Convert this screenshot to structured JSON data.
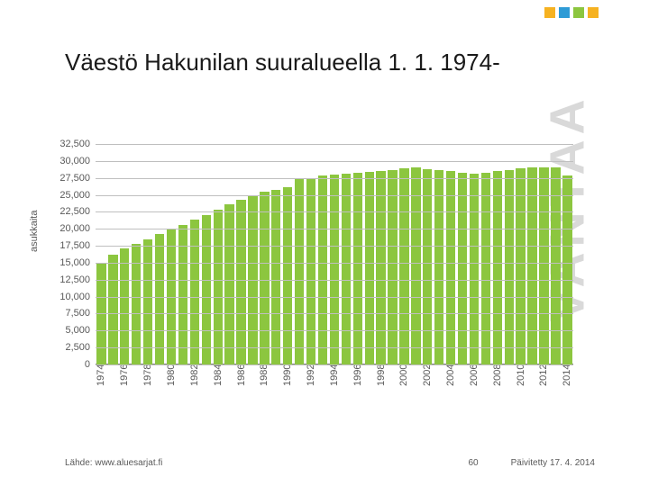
{
  "decor": {
    "dot_colors": [
      "#f6b221",
      "#2e9bd6",
      "#8cc63f",
      "#f6b221"
    ],
    "vantaa_text": "VANTAA",
    "vantaa_color": "#d9d9d9"
  },
  "title": "Väestö Hakunilan suuralueella 1. 1. 1974-",
  "chart": {
    "type": "bar",
    "ylabel": "asukkaita",
    "ylim": [
      0,
      32500
    ],
    "ytick_step": 2500,
    "grid_color": "#bfbfbf",
    "bar_color": "#8cc63f",
    "background_color": "#ffffff",
    "label_fontsize": 11,
    "title_fontsize": 26,
    "years": [
      1974,
      1975,
      1976,
      1977,
      1978,
      1979,
      1980,
      1981,
      1982,
      1983,
      1984,
      1985,
      1986,
      1987,
      1988,
      1989,
      1990,
      1991,
      1992,
      1993,
      1994,
      1995,
      1996,
      1997,
      1998,
      1999,
      2000,
      2001,
      2002,
      2003,
      2004,
      2005,
      2006,
      2007,
      2008,
      2009,
      2010,
      2011,
      2012,
      2013,
      2014
    ],
    "values": [
      15000,
      16200,
      17100,
      17800,
      18400,
      19200,
      19900,
      20600,
      21300,
      22000,
      22800,
      23600,
      24300,
      25000,
      25500,
      25800,
      26200,
      27300,
      27500,
      27800,
      28000,
      28100,
      28200,
      28400,
      28500,
      28700,
      28900,
      29000,
      28800,
      28700,
      28500,
      28300,
      28100,
      28300,
      28500,
      28700,
      28900,
      29000,
      29100,
      29000,
      27800
    ],
    "x_label_years": [
      1974,
      1976,
      1978,
      1980,
      1982,
      1984,
      1986,
      1988,
      1990,
      1992,
      1994,
      1996,
      1998,
      2000,
      2002,
      2004,
      2006,
      2008,
      2010,
      2012,
      2014
    ]
  },
  "footer": {
    "source": "Lähde: www.aluesarjat.fi",
    "page": "60",
    "updated": "Päivitetty 17. 4. 2014"
  }
}
